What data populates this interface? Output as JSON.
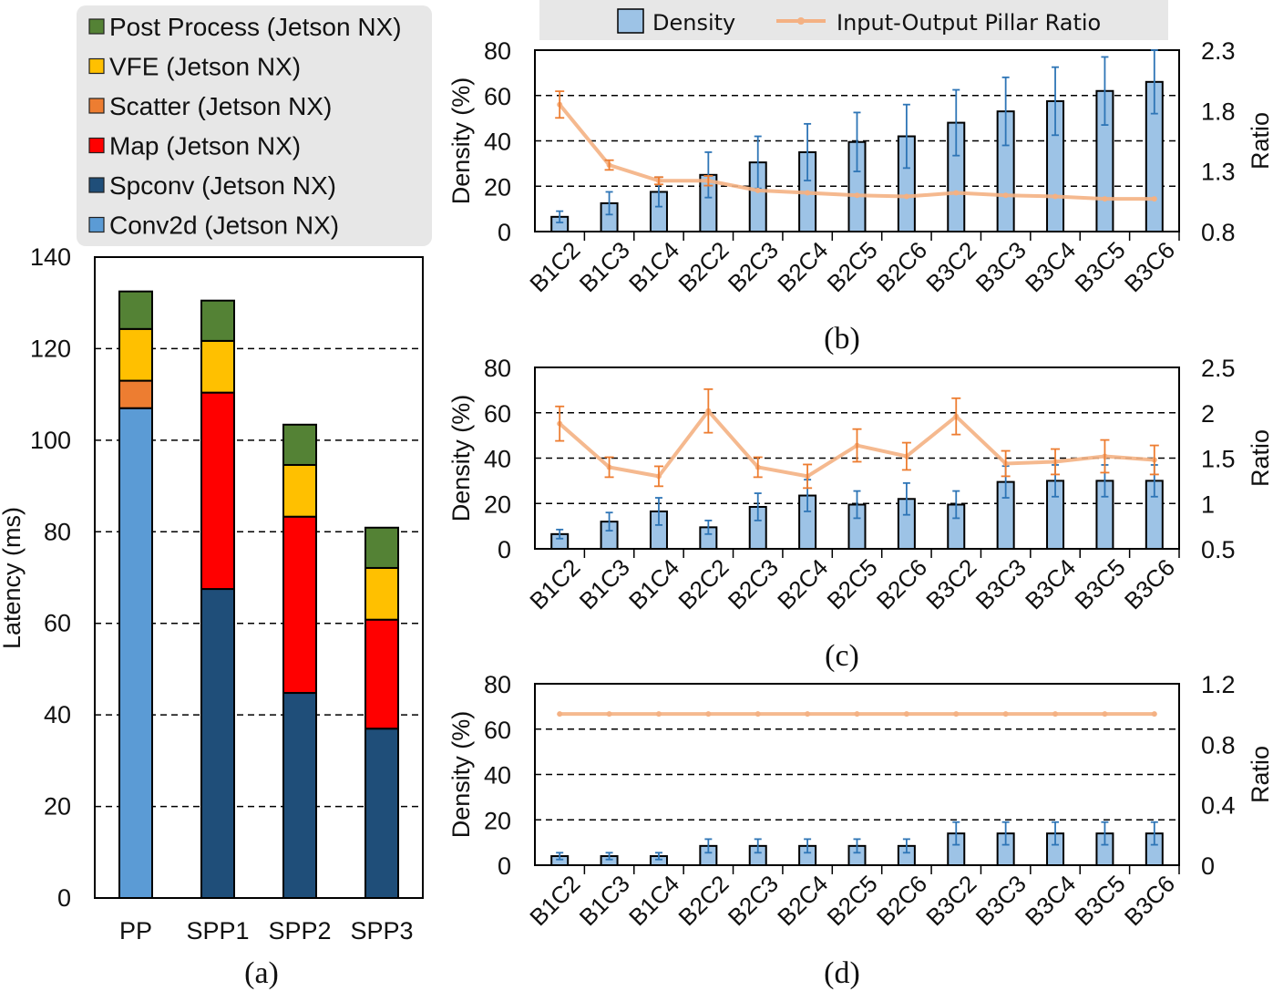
{
  "chart_data": [
    {
      "id": "a",
      "type": "bar",
      "stacked": true,
      "caption": "(a)",
      "title": "",
      "xlabel": "",
      "ylabel": "Latency (ms)",
      "ylim": [
        0,
        140
      ],
      "yticks": [
        "0",
        "20",
        "40",
        "60",
        "80",
        "100",
        "120",
        "140"
      ],
      "grid": "horizontal-dashed",
      "legend_position": "top-left",
      "categories": [
        "PP",
        "SPP1",
        "SPP2",
        "SPP3"
      ],
      "series": [
        {
          "name": "Conv2d (Jetson NX)",
          "color": "#5b9bd5",
          "values": [
            107,
            0,
            0,
            0
          ]
        },
        {
          "name": "Spconv (Jetson NX)",
          "color": "#1f4e79",
          "values": [
            0,
            67.5,
            44.8,
            37
          ]
        },
        {
          "name": "Map (Jetson NX)",
          "color": "#ff0000",
          "values": [
            0,
            42.9,
            38.5,
            23.8
          ]
        },
        {
          "name": "Scatter (Jetson NX)",
          "color": "#ed7d31",
          "values": [
            6,
            0,
            0,
            0
          ]
        },
        {
          "name": "VFE (Jetson NX)",
          "color": "#ffc000",
          "values": [
            11.3,
            11.3,
            11.3,
            11.3
          ]
        },
        {
          "name": "Post Process (Jetson NX)",
          "color": "#548235",
          "values": [
            8.2,
            8.8,
            8.8,
            8.8
          ]
        }
      ],
      "legend_order": [
        "Post Process (Jetson NX)",
        "VFE (Jetson NX)",
        "Scatter (Jetson NX)",
        "Map (Jetson NX)",
        "Spconv (Jetson NX)",
        "Conv2d (Jetson NX)"
      ]
    },
    {
      "id": "b",
      "type": "bar",
      "caption": "(b)",
      "categories": [
        "B1C2",
        "B1C3",
        "B1C4",
        "B2C2",
        "B2C3",
        "B2C4",
        "B2C5",
        "B2C6",
        "B3C2",
        "B3C3",
        "B3C4",
        "B3C5",
        "B3C6"
      ],
      "ylabel": "Density (%)",
      "ylim": [
        0,
        80
      ],
      "yticks": [
        "0",
        "20",
        "40",
        "60",
        "80"
      ],
      "y2label": "Ratio",
      "y2lim": [
        0.8,
        2.3
      ],
      "y2ticks": [
        "0.8",
        "1.3",
        "1.8",
        "2.3"
      ],
      "series": [
        {
          "name": "Density",
          "type": "bar",
          "axis": "left",
          "values": [
            6.5,
            12.5,
            17.5,
            25,
            30.5,
            35,
            39.5,
            42,
            48,
            53,
            57.5,
            62,
            66
          ],
          "error": [
            2.5,
            5,
            6.5,
            10,
            11.5,
            12.5,
            13,
            14,
            14.5,
            15,
            15,
            15,
            14
          ]
        },
        {
          "name": "Input-Output Pillar Ratio",
          "type": "line",
          "axis": "right",
          "values": [
            1.85,
            1.35,
            1.22,
            1.22,
            1.14,
            1.12,
            1.1,
            1.09,
            1.12,
            1.1,
            1.09,
            1.07,
            1.07
          ],
          "error": [
            0.11,
            0.04,
            0.03,
            0.04,
            0.0,
            0.0,
            0.0,
            0.0,
            0.0,
            0.0,
            0.0,
            0.0,
            0.0
          ]
        }
      ]
    },
    {
      "id": "c",
      "type": "bar",
      "caption": "(c)",
      "categories": [
        "B1C2",
        "B1C3",
        "B1C4",
        "B2C2",
        "B2C3",
        "B2C4",
        "B2C5",
        "B2C6",
        "B3C2",
        "B3C3",
        "B3C4",
        "B3C5",
        "B3C6"
      ],
      "ylabel": "Density (%)",
      "ylim": [
        0,
        80
      ],
      "yticks": [
        "0",
        "20",
        "40",
        "60",
        "80"
      ],
      "y2label": "Ratio",
      "y2lim": [
        0.5,
        2.5
      ],
      "y2ticks": [
        "0.5",
        "1",
        "1.5",
        "2",
        "2.5"
      ],
      "series": [
        {
          "name": "Density",
          "type": "bar",
          "axis": "left",
          "values": [
            6.5,
            12,
            16.5,
            9.5,
            18.5,
            23.5,
            19.5,
            22,
            19.5,
            29.5,
            30,
            30,
            30
          ],
          "error": [
            2,
            4,
            6,
            3,
            6,
            7,
            6,
            7,
            6,
            7,
            7,
            7,
            7
          ]
        },
        {
          "name": "Input-Output Pillar Ratio",
          "type": "line",
          "axis": "right",
          "values": [
            1.88,
            1.4,
            1.3,
            2.02,
            1.4,
            1.3,
            1.64,
            1.52,
            1.96,
            1.44,
            1.46,
            1.52,
            1.48
          ],
          "error": [
            0.19,
            0.11,
            0.11,
            0.24,
            0.11,
            0.13,
            0.18,
            0.15,
            0.2,
            0.14,
            0.14,
            0.18,
            0.16
          ]
        }
      ]
    },
    {
      "id": "d",
      "type": "bar",
      "caption": "(d)",
      "categories": [
        "B1C2",
        "B1C3",
        "B1C4",
        "B2C2",
        "B2C3",
        "B2C4",
        "B2C5",
        "B2C6",
        "B3C2",
        "B3C3",
        "B3C4",
        "B3C5",
        "B3C6"
      ],
      "ylabel": "Density (%)",
      "ylim": [
        0,
        80
      ],
      "yticks": [
        "0",
        "20",
        "40",
        "60",
        "80"
      ],
      "y2label": "Ratio",
      "y2lim": [
        0,
        1.2
      ],
      "y2ticks": [
        "0",
        "0.4",
        "0.8",
        "1.2"
      ],
      "series": [
        {
          "name": "Density",
          "type": "bar",
          "axis": "left",
          "values": [
            4,
            4,
            4,
            8.5,
            8.5,
            8.5,
            8.5,
            8.5,
            14,
            14,
            14,
            14,
            14
          ],
          "error": [
            1.5,
            1.5,
            1.5,
            3,
            3,
            3,
            3,
            3,
            5,
            5,
            5,
            5,
            5
          ]
        },
        {
          "name": "Input-Output Pillar Ratio",
          "type": "line",
          "axis": "right",
          "values": [
            1,
            1,
            1,
            1,
            1,
            1,
            1,
            1,
            1,
            1,
            1,
            1,
            1
          ],
          "error": [
            0,
            0,
            0,
            0,
            0,
            0,
            0,
            0,
            0,
            0,
            0,
            0,
            0
          ]
        }
      ]
    }
  ],
  "shared_legend": {
    "items": [
      {
        "name": "Density",
        "kind": "bar",
        "color": "#9dc3e6"
      },
      {
        "name": "Input-Output Pillar Ratio",
        "kind": "line",
        "color": "#f4b183"
      }
    ]
  },
  "colors": {
    "density_fill": "#9dc3e6",
    "density_err": "#2e75b6",
    "ratio_line": "#f4b183",
    "ratio_err": "#ed7d31",
    "legend_bg": "#e7e7e7"
  }
}
